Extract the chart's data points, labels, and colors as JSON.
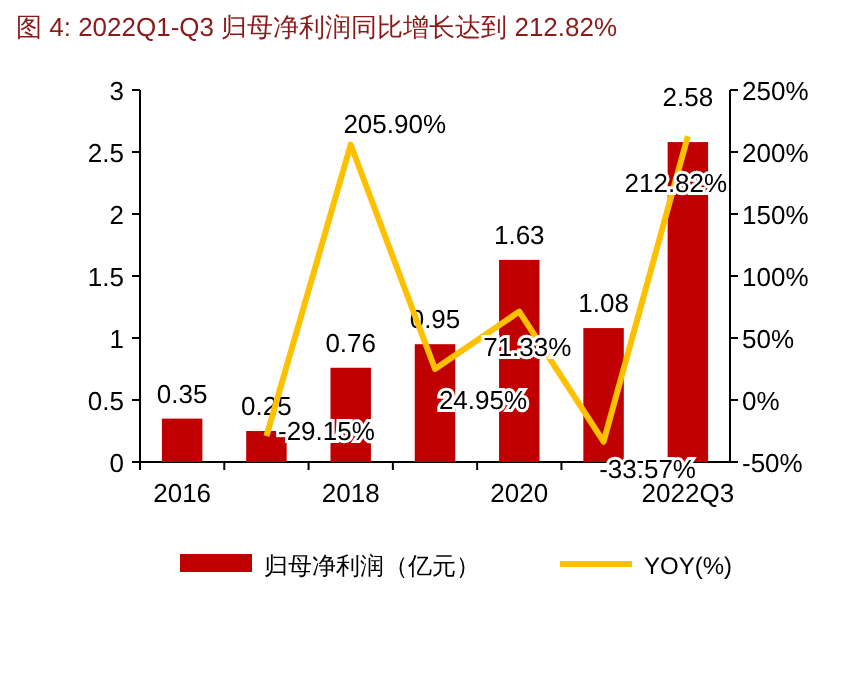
{
  "chart_data": {
    "type": "bar",
    "title": "图 4:  2022Q1-Q3 归母净利润同比增长达到 212.82%",
    "categories": [
      "2016",
      null,
      "2018",
      null,
      "2020",
      null,
      "2022Q3"
    ],
    "series": [
      {
        "name": "归母净利润（亿元）",
        "color": "#c00000",
        "values": [
          0.35,
          0.25,
          0.76,
          0.95,
          1.63,
          1.08,
          2.58
        ],
        "value_labels": [
          "0.35",
          "0.25",
          "0.76",
          "0.95",
          "1.63",
          "1.08",
          "2.58"
        ]
      },
      {
        "name": "YOY(%)",
        "type": "line",
        "axis": "y2",
        "color": "#ffc000",
        "values": [
          null,
          -29.15,
          205.9,
          24.95,
          71.33,
          -33.57,
          212.82
        ],
        "value_labels": [
          null,
          "-29.15%",
          "205.90%",
          "24.95%",
          "71.33%",
          "-33.57%",
          "212.82%"
        ]
      }
    ],
    "ylim": [
      0,
      3
    ],
    "yticks": [
      0,
      0.5,
      1,
      1.5,
      2,
      2.5,
      3
    ],
    "y2lim": [
      -50,
      250
    ],
    "y2ticks": [
      {
        "value": -50,
        "label": "-50%"
      },
      {
        "value": 0,
        "label": "0%"
      },
      {
        "value": 50,
        "label": "50%"
      },
      {
        "value": 100,
        "label": "100%"
      },
      {
        "value": 150,
        "label": "150%"
      },
      {
        "value": 200,
        "label": "200%"
      },
      {
        "value": 250,
        "label": "250%"
      }
    ],
    "grid": false,
    "legend": "bottom"
  }
}
